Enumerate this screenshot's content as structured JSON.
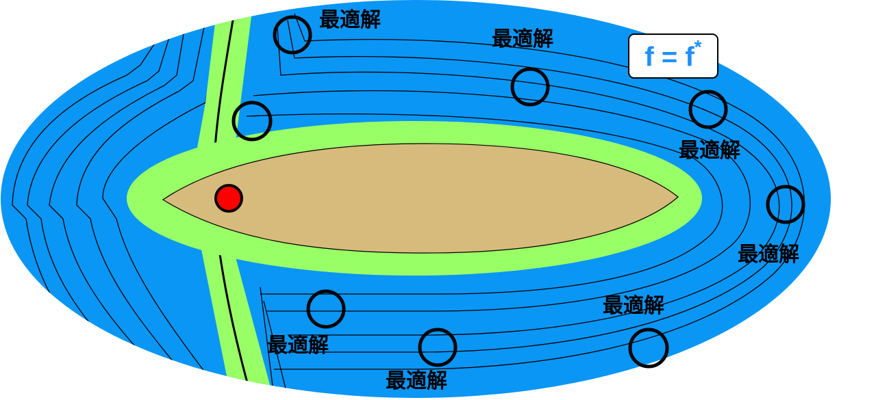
{
  "formula": {
    "text": "f = f",
    "superscript": "*",
    "color": "#1e90ff"
  },
  "optimum_label": "最適解",
  "labels": [
    "最適解",
    "最適解",
    "最適解",
    "最適解",
    "最適解",
    "最適解",
    "最適解"
  ],
  "colors": {
    "outer_region": "#0a96f5",
    "band": "#99ff66",
    "core": "#d6bb7c",
    "start_point": "#ff0000",
    "contour_line": "#000000"
  }
}
